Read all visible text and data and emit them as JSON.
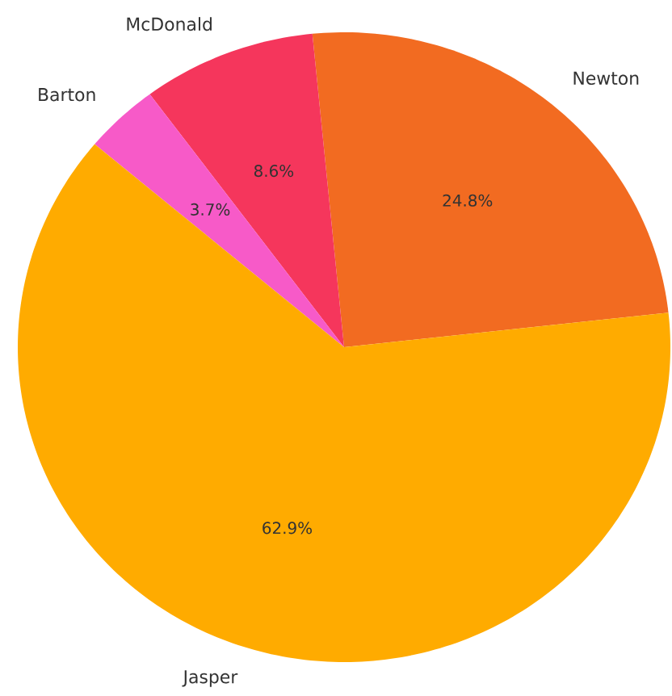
{
  "chart_data": {
    "type": "pie",
    "categories": [
      "Newton",
      "McDonald",
      "Barton",
      "Jasper"
    ],
    "values": [
      24.8,
      8.6,
      3.7,
      62.9
    ],
    "value_labels": [
      "24.8%",
      "8.6%",
      "3.7%",
      "62.9%"
    ],
    "colors": [
      "#f26b21",
      "#f5365c",
      "#f75ac8",
      "#ffab00"
    ]
  }
}
